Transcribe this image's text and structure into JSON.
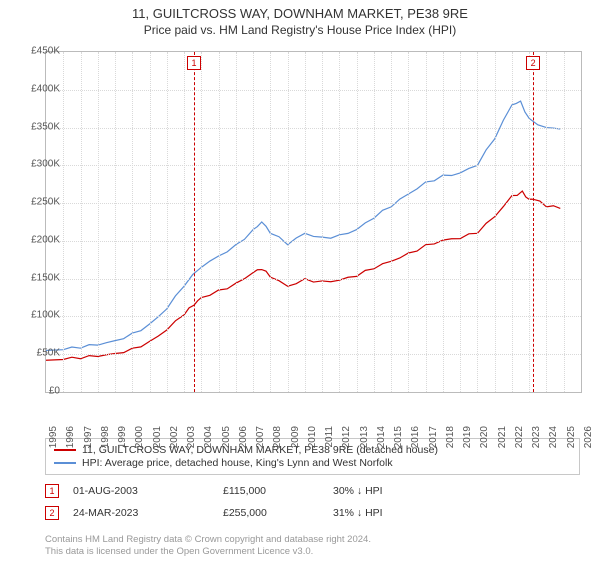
{
  "title": "11, GUILTCROSS WAY, DOWNHAM MARKET, PE38 9RE",
  "subtitle": "Price paid vs. HM Land Registry's House Price Index (HPI)",
  "chart": {
    "type": "line",
    "background_color": "#ffffff",
    "grid_color": "#d9d9d9",
    "axis_color": "#bbbbbb",
    "label_color": "#555555",
    "label_fontsize": 10,
    "x_min": 1995,
    "x_max": 2026,
    "x_step": 1,
    "y_min": 0,
    "y_max": 450000,
    "y_step": 50000,
    "y_tick_labels": [
      "£0",
      "£50K",
      "£100K",
      "£150K",
      "£200K",
      "£250K",
      "£300K",
      "£350K",
      "£400K",
      "£450K"
    ],
    "x_tick_labels": [
      "1995",
      "1996",
      "1997",
      "1998",
      "1999",
      "2000",
      "2001",
      "2002",
      "2003",
      "2004",
      "2005",
      "2006",
      "2007",
      "2008",
      "2009",
      "2010",
      "2011",
      "2012",
      "2013",
      "2014",
      "2015",
      "2016",
      "2017",
      "2018",
      "2019",
      "2020",
      "2021",
      "2022",
      "2023",
      "2024",
      "2025",
      "2026"
    ],
    "markers": [
      {
        "n": "1",
        "x": 2003.58,
        "color": "#cc0000"
      },
      {
        "n": "2",
        "x": 2023.23,
        "color": "#cc0000"
      }
    ],
    "series": [
      {
        "name": "hpi",
        "color": "#5b8fd6",
        "width": 1.2,
        "points": [
          [
            1995,
            55000
          ],
          [
            1996,
            56000
          ],
          [
            1997,
            58000
          ],
          [
            1998,
            62000
          ],
          [
            1999,
            68000
          ],
          [
            2000,
            78000
          ],
          [
            2001,
            90000
          ],
          [
            2002,
            110000
          ],
          [
            2003,
            140000
          ],
          [
            2004,
            165000
          ],
          [
            2005,
            180000
          ],
          [
            2006,
            195000
          ],
          [
            2007,
            215000
          ],
          [
            2007.5,
            225000
          ],
          [
            2008,
            210000
          ],
          [
            2009,
            195000
          ],
          [
            2010,
            210000
          ],
          [
            2011,
            205000
          ],
          [
            2012,
            208000
          ],
          [
            2013,
            215000
          ],
          [
            2014,
            230000
          ],
          [
            2015,
            245000
          ],
          [
            2016,
            262000
          ],
          [
            2017,
            278000
          ],
          [
            2018,
            287000
          ],
          [
            2019,
            290000
          ],
          [
            2020,
            300000
          ],
          [
            2021,
            335000
          ],
          [
            2022,
            380000
          ],
          [
            2022.5,
            385000
          ],
          [
            2023,
            362000
          ],
          [
            2024,
            350000
          ],
          [
            2024.8,
            348000
          ]
        ]
      },
      {
        "name": "price",
        "color": "#cc0000",
        "width": 1.2,
        "points": [
          [
            1995,
            42000
          ],
          [
            1996,
            43000
          ],
          [
            1997,
            44000
          ],
          [
            1998,
            47000
          ],
          [
            1999,
            51000
          ],
          [
            2000,
            58000
          ],
          [
            2001,
            67000
          ],
          [
            2002,
            82000
          ],
          [
            2003,
            102000
          ],
          [
            2003.58,
            115000
          ],
          [
            2004,
            125000
          ],
          [
            2005,
            135000
          ],
          [
            2006,
            144000
          ],
          [
            2007,
            158000
          ],
          [
            2007.5,
            162000
          ],
          [
            2008,
            152000
          ],
          [
            2009,
            140000
          ],
          [
            2010,
            150000
          ],
          [
            2011,
            147000
          ],
          [
            2012,
            148000
          ],
          [
            2013,
            153000
          ],
          [
            2014,
            163000
          ],
          [
            2015,
            173000
          ],
          [
            2016,
            184000
          ],
          [
            2017,
            195000
          ],
          [
            2018,
            201000
          ],
          [
            2019,
            203000
          ],
          [
            2020,
            210000
          ],
          [
            2021,
            232000
          ],
          [
            2022,
            260000
          ],
          [
            2022.6,
            266000
          ],
          [
            2023,
            255000
          ],
          [
            2023.23,
            255000
          ],
          [
            2024,
            245000
          ],
          [
            2024.8,
            243000
          ]
        ]
      }
    ]
  },
  "legend": {
    "rows": [
      {
        "color": "#cc0000",
        "label": "11, GUILTCROSS WAY, DOWNHAM MARKET, PE38 9RE (detached house)"
      },
      {
        "color": "#5b8fd6",
        "label": "HPI: Average price, detached house, King's Lynn and West Norfolk"
      }
    ]
  },
  "transactions": [
    {
      "n": "1",
      "color": "#cc0000",
      "date": "01-AUG-2003",
      "price": "£115,000",
      "delta": "30% ↓ HPI"
    },
    {
      "n": "2",
      "color": "#cc0000",
      "date": "24-MAR-2023",
      "price": "£255,000",
      "delta": "31% ↓ HPI"
    }
  ],
  "footer_line1": "Contains HM Land Registry data © Crown copyright and database right 2024.",
  "footer_line2": "This data is licensed under the Open Government Licence v3.0."
}
